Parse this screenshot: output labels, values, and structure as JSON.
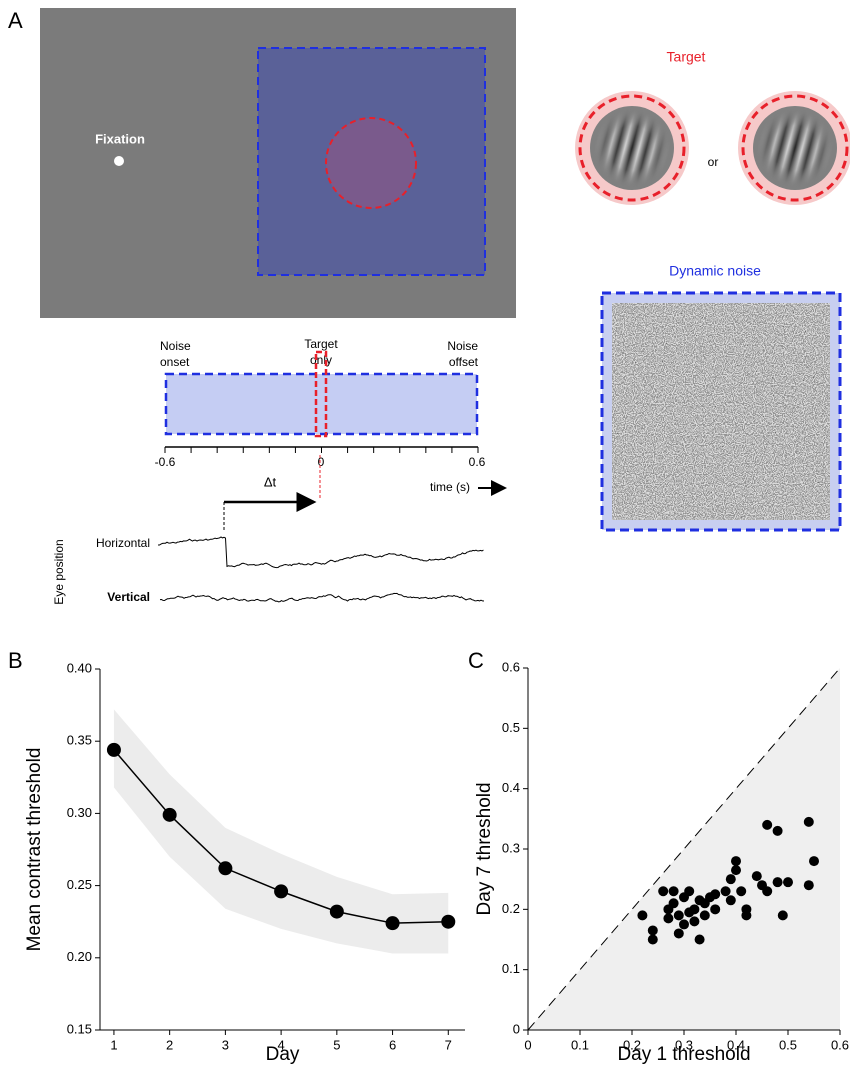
{
  "panel_labels": [
    "A",
    "B",
    "C"
  ],
  "diagram": {
    "fixation": "Fixation",
    "target_title": "Target",
    "or": "or",
    "noise_title": "Dynamic noise",
    "noise_onset": [
      "Noise",
      "onset"
    ],
    "target_only": [
      "Target",
      "only"
    ],
    "noise_offset": [
      "Noise",
      "offset"
    ],
    "timeline_ticks": [
      -0.6,
      0,
      0.6
    ],
    "time_label": "time (s)",
    "delta_t": "Δt",
    "eye_position": "Eye position",
    "horizontal": "Horizontal",
    "vertical": "Vertical"
  },
  "chart_data": [
    {
      "type": "line",
      "x_label": "Day",
      "y_label": "Mean contrast threshold",
      "x": [
        1,
        2,
        3,
        4,
        5,
        6,
        7
      ],
      "series": [
        {
          "color": "#000000",
          "values": [
            0.344,
            0.299,
            0.262,
            0.246,
            0.232,
            0.224,
            0.225
          ]
        }
      ],
      "band": {
        "color": "#ececec",
        "upper": [
          0.372,
          0.327,
          0.29,
          0.272,
          0.256,
          0.244,
          0.245
        ],
        "lower": [
          0.318,
          0.27,
          0.234,
          0.22,
          0.21,
          0.203,
          0.203
        ]
      },
      "xlim": [
        0.75,
        7.3
      ],
      "xticks": [
        1,
        2,
        3,
        4,
        5,
        6,
        7
      ],
      "ylim": [
        0.15,
        0.4
      ],
      "yticks": [
        0.15,
        {
          "value": 0.2,
          "label": "0.20"
        },
        0.25,
        {
          "value": 0.3,
          "label": "0.30"
        },
        0.35,
        {
          "value": 0.4,
          "label": "0.40"
        }
      ]
    },
    {
      "type": "scatter",
      "x_label": "Day 1 threshold",
      "y_label": "Day 7 threshold",
      "color": "#000000",
      "region_color": "#efefef",
      "x": [
        0.22,
        0.24,
        0.24,
        0.26,
        0.27,
        0.27,
        0.28,
        0.28,
        0.29,
        0.29,
        0.3,
        0.3,
        0.31,
        0.31,
        0.32,
        0.32,
        0.33,
        0.33,
        0.34,
        0.34,
        0.35,
        0.36,
        0.36,
        0.38,
        0.39,
        0.39,
        0.4,
        0.4,
        0.41,
        0.42,
        0.42,
        0.44,
        0.45,
        0.46,
        0.46,
        0.48,
        0.48,
        0.49,
        0.5,
        0.54,
        0.54,
        0.55
      ],
      "values": [
        0.19,
        0.15,
        0.165,
        0.23,
        0.2,
        0.185,
        0.21,
        0.23,
        0.16,
        0.19,
        0.22,
        0.175,
        0.23,
        0.195,
        0.2,
        0.18,
        0.15,
        0.215,
        0.21,
        0.19,
        0.22,
        0.2,
        0.225,
        0.23,
        0.25,
        0.215,
        0.265,
        0.28,
        0.23,
        0.2,
        0.19,
        0.255,
        0.24,
        0.34,
        0.23,
        0.33,
        0.245,
        0.19,
        0.245,
        0.345,
        0.24,
        0.28
      ],
      "xlim": [
        0,
        0.6
      ],
      "xticks": [
        0,
        0.1,
        0.2,
        0.3,
        0.4,
        0.5,
        0.6
      ],
      "ylim": [
        0,
        0.6
      ],
      "yticks": [
        0,
        0.1,
        0.2,
        0.3,
        0.4,
        0.5,
        0.6
      ]
    }
  ]
}
